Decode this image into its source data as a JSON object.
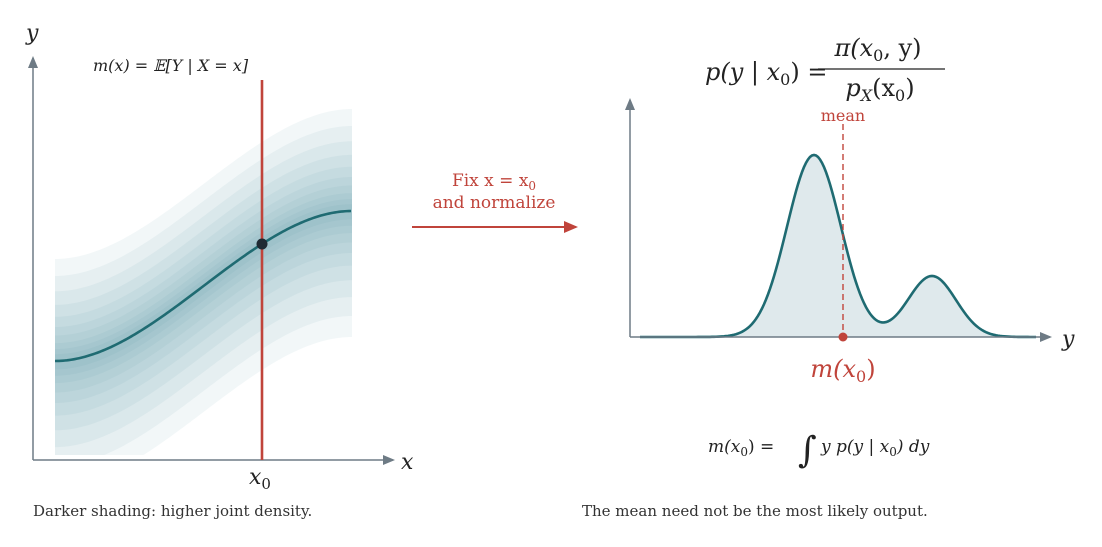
{
  "colors": {
    "axis": "#6e7b85",
    "teal": "#1f6b72",
    "shade": "#4f9aa1",
    "red": "#c0443b",
    "dot": "#1f2a33",
    "fill": "#dfe9ec"
  },
  "left": {
    "axis_y": "y",
    "axis_x": "x",
    "x0_label": "x",
    "x0_sub": "0",
    "curve_label": "m(x) = 𝔼[Y | X = x]",
    "caption": "Darker shading: higher joint density."
  },
  "middle": {
    "line1_pre": "Fix x = x",
    "line1_sub": "0",
    "line2": "and normalize"
  },
  "right": {
    "formula_lhs": "p(y | x",
    "formula_lhs_sub": "0",
    "formula_lhs_end": ") =",
    "formula_num": "π(x",
    "formula_num_sub": "0",
    "formula_num_end": ", y)",
    "formula_den": "p",
    "formula_den_sub": "X",
    "formula_den_end": "(x",
    "formula_den_sub2": "0",
    "formula_den_close": ")",
    "mean_label": "mean",
    "axis_y": "y",
    "mx0_label": "m(x",
    "mx0_sub": "0",
    "mx0_end": ")",
    "integral_lhs": "m(x",
    "integral_lhs_sub": "0",
    "integral_lhs_end": ") =",
    "integral_sign": "∫",
    "integral_rhs": "y p(y | x",
    "integral_rhs_sub": "0",
    "integral_rhs_end": ") dy",
    "caption": "The mean need not be the most likely output."
  }
}
